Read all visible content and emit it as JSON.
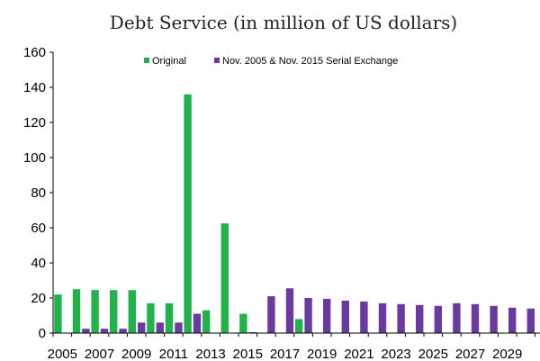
{
  "colors": {
    "original": "#22b24c",
    "exchange": "#6b3aa0",
    "axis": "#000000"
  },
  "chart_data": {
    "type": "bar",
    "title": "Debt Service (in million of US dollars)",
    "xlabel": "",
    "ylabel": "",
    "ylim": [
      0,
      160
    ],
    "yticks": [
      0,
      20,
      40,
      60,
      80,
      100,
      120,
      140,
      160
    ],
    "grid": false,
    "legend_position": "top",
    "x_tick_labels": [
      "2005",
      "2007",
      "2009",
      "2011",
      "2013",
      "2015",
      "2017",
      "2019",
      "2021",
      "2023",
      "2025",
      "2027",
      "2029"
    ],
    "categories": [
      "2005",
      "2006",
      "2007",
      "2008",
      "2009",
      "2010",
      "2011",
      "2012",
      "2013",
      "2014",
      "2015",
      "2016",
      "2017",
      "2018",
      "2019",
      "2020",
      "2021",
      "2022",
      "2023",
      "2024",
      "2025",
      "2026",
      "2027",
      "2028",
      "2029",
      "2030"
    ],
    "series": [
      {
        "name": "Original",
        "values": [
          22,
          25,
          24.5,
          24.5,
          24.5,
          17,
          17,
          136,
          13,
          62.5,
          11,
          0,
          0,
          8,
          0,
          0,
          0,
          0,
          0,
          0,
          0,
          0,
          0,
          0,
          0,
          0
        ]
      },
      {
        "name": "Nov. 2005 & Nov. 2015 Serial Exchange",
        "values": [
          0,
          2.5,
          2.5,
          2.5,
          6,
          6,
          6,
          11,
          0,
          0,
          0.5,
          21,
          25.5,
          20,
          19.5,
          18.5,
          18,
          17,
          16.5,
          16,
          15.5,
          17,
          16.5,
          15.5,
          14.5,
          14
        ]
      }
    ]
  }
}
